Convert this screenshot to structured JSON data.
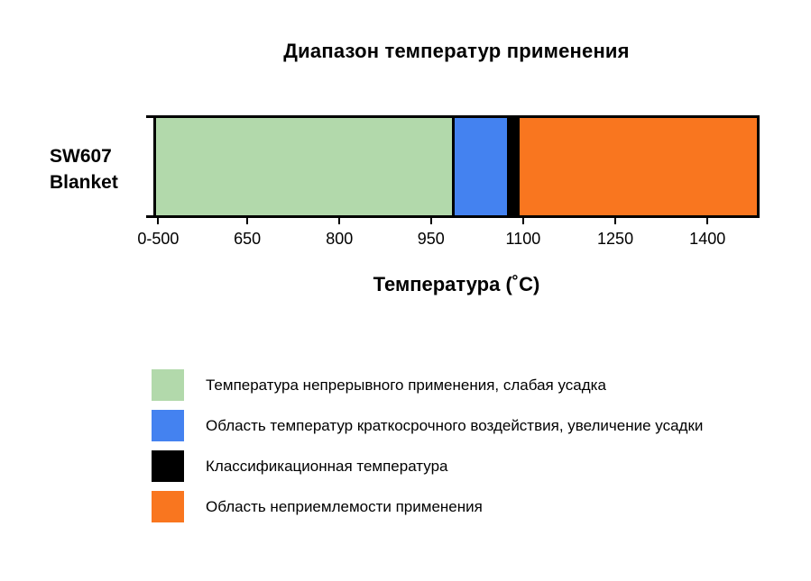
{
  "chart_data": {
    "type": "bar",
    "orientation": "horizontal",
    "title": "Диапазон температур применения",
    "xlabel": "Температура (˚C)",
    "row_label": "SW607\nBlanket",
    "categories": [
      "SW607 Blanket"
    ],
    "x_axis_range_c": [
      500,
      1485
    ],
    "x_ticks": [
      {
        "label": "0-500",
        "pos_pct": 0.8
      },
      {
        "label": "650",
        "pos_pct": 15.5
      },
      {
        "label": "800",
        "pos_pct": 30.7
      },
      {
        "label": "950",
        "pos_pct": 45.8
      },
      {
        "label": "1100",
        "pos_pct": 61.0
      },
      {
        "label": "1250",
        "pos_pct": 76.2
      },
      {
        "label": "1400",
        "pos_pct": 91.4
      }
    ],
    "segments": [
      {
        "name": "continuous-use",
        "label": "Температура непрерывного применения, слабая усадка",
        "color": "#b2d9ab",
        "temp_from_c": 0,
        "temp_to_c": 985,
        "width_pct": 49.2
      },
      {
        "name": "short-term-exposure",
        "label": "Область температур краткосрочного воздействия, увеличение усадки",
        "color": "#4482f0",
        "temp_from_c": 985,
        "temp_to_c": 1080,
        "width_pct": 9.6
      },
      {
        "name": "classification-temperature",
        "label": "Классификационная температура",
        "color": "#000000",
        "temp_from_c": 1080,
        "temp_to_c": 1100,
        "width_pct": 1.7
      },
      {
        "name": "unacceptable-use",
        "label": "Область неприемлемости применения",
        "color": "#f9761f",
        "temp_from_c": 1100,
        "temp_to_c": 1485,
        "width_pct": 39.5
      }
    ],
    "legend_position": "bottom-left",
    "legend": [
      {
        "label": "Температура непрерывного применения, слабая усадка",
        "color": "#b2d9ab"
      },
      {
        "label": "Область температур краткосрочного воздействия, увеличение усадки",
        "color": "#4482f0"
      },
      {
        "label": "Классификационная температура",
        "color": "#000000"
      },
      {
        "label": "Область неприемлемости применения",
        "color": "#f9761f"
      }
    ]
  }
}
